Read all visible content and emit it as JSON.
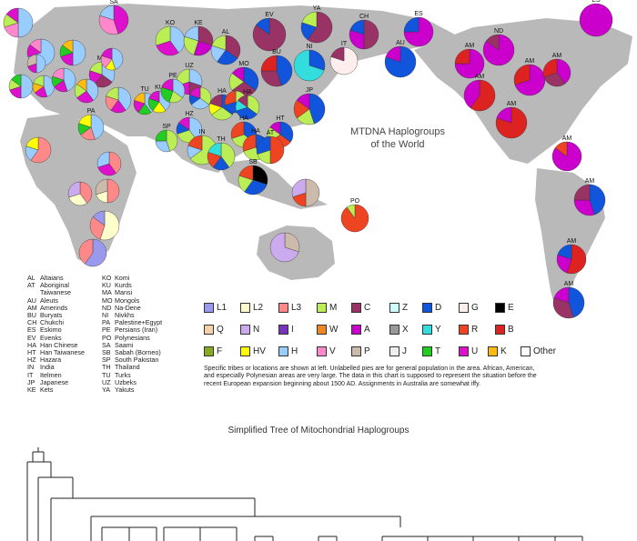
{
  "title": {
    "line1": "MTDNA Haplogroups",
    "line2": "of the World"
  },
  "abbreviations_left": [
    {
      "code": "AL",
      "name": "Altaians"
    },
    {
      "code": "AT",
      "name": "Aboriginal"
    },
    {
      "code": "",
      "name": "Taiwanese"
    },
    {
      "code": "AU",
      "name": "Aleuts"
    },
    {
      "code": "AM",
      "name": "Amerinds"
    },
    {
      "code": "BU",
      "name": "Buryats"
    },
    {
      "code": "CH",
      "name": "Chukchi"
    },
    {
      "code": "ES",
      "name": "Eskimo"
    },
    {
      "code": "EV",
      "name": "Evenks"
    },
    {
      "code": "HA",
      "name": "Han Chinese"
    },
    {
      "code": "HT",
      "name": "Han Taiwanese"
    },
    {
      "code": "HZ",
      "name": "Hazara"
    },
    {
      "code": "IN",
      "name": "India"
    },
    {
      "code": "IT",
      "name": "Itelmen"
    },
    {
      "code": "JP",
      "name": "Japanese"
    },
    {
      "code": "KE",
      "name": "Kets"
    }
  ],
  "abbreviations_right": [
    {
      "code": "KO",
      "name": "Komi"
    },
    {
      "code": "KU",
      "name": "Kurds"
    },
    {
      "code": "MA",
      "name": "Mansi"
    },
    {
      "code": "MO",
      "name": "Mongols"
    },
    {
      "code": "ND",
      "name": "Na-Dene"
    },
    {
      "code": "NI",
      "name": "Nivkhs"
    },
    {
      "code": "PA",
      "name": "Palestine+Egypt"
    },
    {
      "code": "PE",
      "name": "Persians (Iran)"
    },
    {
      "code": "PO",
      "name": "Polynesians"
    },
    {
      "code": "SA",
      "name": "Saami"
    },
    {
      "code": "SB",
      "name": "Sabah (Borneo)"
    },
    {
      "code": "SP",
      "name": "South Pakistan"
    },
    {
      "code": "TH",
      "name": "Thailand"
    },
    {
      "code": "TU",
      "name": "Turks"
    },
    {
      "code": "UZ",
      "name": "Uzbeks"
    },
    {
      "code": "YA",
      "name": "Yakuts"
    }
  ],
  "legend": [
    {
      "label": "L1",
      "color": "#9999ee"
    },
    {
      "label": "L2",
      "color": "#ffffcc"
    },
    {
      "label": "L3",
      "color": "#ff8888"
    },
    {
      "label": "M",
      "color": "#bbee55"
    },
    {
      "label": "C",
      "color": "#993366"
    },
    {
      "label": "Z",
      "color": "#ccffff"
    },
    {
      "label": "D",
      "color": "#1155dd"
    },
    {
      "label": "G",
      "color": "#ffeeee"
    },
    {
      "label": "E",
      "color": "#000000"
    },
    {
      "label": "Q",
      "color": "#f5d0a8"
    },
    {
      "label": "N",
      "color": "#ccaaee"
    },
    {
      "label": "I",
      "color": "#7733bb"
    },
    {
      "label": "W",
      "color": "#ee8822"
    },
    {
      "label": "A",
      "color": "#cc00cc"
    },
    {
      "label": "X",
      "color": "#999999"
    },
    {
      "label": "Y",
      "color": "#33dddd"
    },
    {
      "label": "R",
      "color": "#ee4422"
    },
    {
      "label": "B",
      "color": "#dd2222"
    },
    {
      "label": "F",
      "color": "#88aa22"
    },
    {
      "label": "HV",
      "color": "#ffff00"
    },
    {
      "label": "H",
      "color": "#99ccff"
    },
    {
      "label": "V",
      "color": "#ff88cc"
    },
    {
      "label": "P",
      "color": "#ccbbaa"
    },
    {
      "label": "J",
      "color": "#eeeeee"
    },
    {
      "label": "T",
      "color": "#22cc22"
    },
    {
      "label": "U",
      "color": "#dd11cc"
    },
    {
      "label": "K",
      "color": "#ffbb11"
    },
    {
      "label": "Other",
      "color": "#ffffff"
    }
  ],
  "note": "Specific tribes or locations are shown at left. Unlabelled pies are for general population in the area. African, American, and especially Polynesian areas are very large. The data in this chart is supposed to represent the situation before the recent European expansion beginning about 1500 AD. Assignments in Australia are somewhat iffy.",
  "tree_title": "Simplified Tree of Mitochondrial Haplogroups",
  "pies": [
    {
      "label": "",
      "s": [
        [
          "#99ccff",
          0.5
        ],
        [
          "#ff88cc",
          0.2
        ],
        [
          "#bbee55",
          0.15
        ],
        [
          "#dd11cc",
          0.15
        ]
      ]
    },
    {
      "label": "SA",
      "s": [
        [
          "#dd11cc",
          0.45
        ],
        [
          "#ff88cc",
          0.35
        ],
        [
          "#99ccff",
          0.2
        ]
      ]
    },
    {
      "label": "",
      "s": [
        [
          "#99ccff",
          0.7
        ],
        [
          "#dd11cc",
          0.15
        ],
        [
          "#ff88cc",
          0.15
        ]
      ]
    },
    {
      "label": "",
      "s": [
        [
          "#99ccff",
          0.5
        ],
        [
          "#dd11cc",
          0.2
        ],
        [
          "#22cc22",
          0.15
        ],
        [
          "#ffbb11",
          0.15
        ]
      ]
    },
    {
      "label": "KO",
      "s": [
        [
          "#99ccff",
          0.4
        ],
        [
          "#dd11cc",
          0.3
        ],
        [
          "#bbee55",
          0.3
        ]
      ]
    },
    {
      "label": "KE",
      "s": [
        [
          "#993366",
          0.3
        ],
        [
          "#cc00cc",
          0.25
        ],
        [
          "#bbee55",
          0.25
        ],
        [
          "#99ccff",
          0.2
        ]
      ]
    },
    {
      "label": "AL",
      "s": [
        [
          "#993366",
          0.35
        ],
        [
          "#1155dd",
          0.25
        ],
        [
          "#99ccff",
          0.2
        ],
        [
          "#bbee55",
          0.2
        ]
      ]
    },
    {
      "label": "EV",
      "s": [
        [
          "#993366",
          0.85
        ],
        [
          "#1155dd",
          0.15
        ]
      ]
    },
    {
      "label": "YA",
      "s": [
        [
          "#993366",
          0.6
        ],
        [
          "#1155dd",
          0.2
        ],
        [
          "#bbee55",
          0.2
        ]
      ]
    },
    {
      "label": "CH",
      "s": [
        [
          "#993366",
          0.5
        ],
        [
          "#cc00cc",
          0.3
        ],
        [
          "#1155dd",
          0.2
        ]
      ]
    },
    {
      "label": "ES",
      "s": [
        [
          "#cc00cc",
          0.75
        ],
        [
          "#1155dd",
          0.25
        ]
      ]
    },
    {
      "label": "ES",
      "s": [
        [
          "#cc00cc",
          1.0
        ]
      ]
    },
    {
      "label": "",
      "s": [
        [
          "#99ccff",
          0.5
        ],
        [
          "#dd11cc",
          0.2
        ],
        [
          "#bbee55",
          0.15
        ],
        [
          "#22cc22",
          0.15
        ]
      ]
    },
    {
      "label": "",
      "s": [
        [
          "#99ccff",
          0.45
        ],
        [
          "#dd11cc",
          0.2
        ],
        [
          "#ffbb11",
          0.15
        ],
        [
          "#bbee55",
          0.2
        ]
      ]
    },
    {
      "label": "",
      "s": [
        [
          "#99ccff",
          0.45
        ],
        [
          "#dd11cc",
          0.2
        ],
        [
          "#22cc22",
          0.15
        ],
        [
          "#ff88cc",
          0.2
        ]
      ]
    },
    {
      "label": "MA",
      "s": [
        [
          "#99ccff",
          0.35
        ],
        [
          "#993366",
          0.25
        ],
        [
          "#dd11cc",
          0.2
        ],
        [
          "#bbee55",
          0.2
        ]
      ]
    },
    {
      "label": "",
      "s": [
        [
          "#99ccff",
          0.5
        ],
        [
          "#dd11cc",
          0.2
        ],
        [
          "#ccbbaa",
          0.3
        ]
      ]
    },
    {
      "label": "",
      "s": [
        [
          "#99ccff",
          0.4
        ],
        [
          "#dd11cc",
          0.25
        ],
        [
          "#bbee55",
          0.2
        ],
        [
          "#ffbb11",
          0.15
        ]
      ]
    },
    {
      "label": "UZ",
      "s": [
        [
          "#99ccff",
          0.3
        ],
        [
          "#993366",
          0.2
        ],
        [
          "#dd11cc",
          0.2
        ],
        [
          "#bbee55",
          0.3
        ]
      ]
    },
    {
      "label": "MO",
      "s": [
        [
          "#1155dd",
          0.35
        ],
        [
          "#993366",
          0.3
        ],
        [
          "#bbee55",
          0.2
        ],
        [
          "#cc00cc",
          0.15
        ]
      ]
    },
    {
      "label": "BU",
      "s": [
        [
          "#1155dd",
          0.45
        ],
        [
          "#993366",
          0.3
        ],
        [
          "#dd2222",
          0.25
        ]
      ]
    },
    {
      "label": "NI",
      "s": [
        [
          "#1155dd",
          0.3
        ],
        [
          "#33dddd",
          0.7
        ]
      ]
    },
    {
      "label": "IT",
      "s": [
        [
          "#ffeeee",
          0.8
        ],
        [
          "#993366",
          0.2
        ]
      ]
    },
    {
      "label": "AU",
      "s": [
        [
          "#1155dd",
          0.8
        ],
        [
          "#cc00cc",
          0.2
        ]
      ]
    },
    {
      "label": "AM",
      "s": [
        [
          "#cc00cc",
          0.75
        ],
        [
          "#dd2222",
          0.25
        ]
      ]
    },
    {
      "label": "ND",
      "s": [
        [
          "#cc00cc",
          0.85
        ],
        [
          "#993366",
          0.15
        ]
      ]
    },
    {
      "label": "AM",
      "s": [
        [
          "#cc00cc",
          0.7
        ],
        [
          "#dd2222",
          0.3
        ]
      ]
    },
    {
      "label": "AM",
      "s": [
        [
          "#dd2222",
          0.6
        ],
        [
          "#cc00cc",
          0.4
        ]
      ]
    },
    {
      "label": "AM",
      "s": [
        [
          "#cc00cc",
          0.4
        ],
        [
          "#993366",
          0.3
        ],
        [
          "#dd2222",
          0.3
        ]
      ]
    },
    {
      "label": "AM",
      "s": [
        [
          "#dd2222",
          0.8
        ],
        [
          "#cc00cc",
          0.2
        ]
      ]
    },
    {
      "label": "",
      "s": [
        [
          "#99ccff",
          0.45
        ],
        [
          "#ffff00",
          0.15
        ],
        [
          "#ff88cc",
          0.2
        ],
        [
          "#dd11cc",
          0.2
        ]
      ]
    },
    {
      "label": "",
      "s": [
        [
          "#99ccff",
          0.4
        ],
        [
          "#dd11cc",
          0.2
        ],
        [
          "#ff8888",
          0.2
        ],
        [
          "#bbee55",
          0.2
        ]
      ]
    },
    {
      "label": "TU",
      "s": [
        [
          "#99ccff",
          0.4
        ],
        [
          "#22cc22",
          0.2
        ],
        [
          "#dd11cc",
          0.2
        ],
        [
          "#ffbb11",
          0.2
        ]
      ]
    },
    {
      "label": "KU",
      "s": [
        [
          "#99ccff",
          0.4
        ],
        [
          "#ffff00",
          0.2
        ],
        [
          "#22cc22",
          0.2
        ],
        [
          "#dd11cc",
          0.2
        ]
      ]
    },
    {
      "label": "PE",
      "s": [
        [
          "#99ccff",
          0.35
        ],
        [
          "#bbee55",
          0.2
        ],
        [
          "#22cc22",
          0.25
        ],
        [
          "#dd11cc",
          0.2
        ]
      ]
    },
    {
      "label": "",
      "s": [
        [
          "#bbee55",
          0.35
        ],
        [
          "#99ccff",
          0.3
        ],
        [
          "#1155dd",
          0.15
        ],
        [
          "#dd11cc",
          0.2
        ]
      ]
    },
    {
      "label": "HA",
      "s": [
        [
          "#1155dd",
          0.35
        ],
        [
          "#bbee55",
          0.3
        ],
        [
          "#ffff00",
          0.15
        ],
        [
          "#993366",
          0.2
        ]
      ]
    },
    {
      "label": "",
      "s": [
        [
          "#bbee55",
          0.4
        ],
        [
          "#1155dd",
          0.3
        ],
        [
          "#ee4422",
          0.3
        ]
      ]
    },
    {
      "label": "HA",
      "s": [
        [
          "#bbee55",
          0.35
        ],
        [
          "#1155dd",
          0.35
        ],
        [
          "#33dddd",
          0.15
        ],
        [
          "#993366",
          0.15
        ]
      ]
    },
    {
      "label": "JP",
      "s": [
        [
          "#1155dd",
          0.45
        ],
        [
          "#bbee55",
          0.2
        ],
        [
          "#ee4422",
          0.2
        ],
        [
          "#cc00cc",
          0.15
        ]
      ]
    },
    {
      "label": "PA",
      "s": [
        [
          "#99ccff",
          0.45
        ],
        [
          "#ff8888",
          0.2
        ],
        [
          "#22cc22",
          0.15
        ],
        [
          "#ffff00",
          0.2
        ]
      ]
    },
    {
      "label": "SP",
      "s": [
        [
          "#bbee55",
          0.45
        ],
        [
          "#99ccff",
          0.3
        ],
        [
          "#22cc22",
          0.25
        ]
      ]
    },
    {
      "label": "HZ",
      "s": [
        [
          "#99ccff",
          0.4
        ],
        [
          "#bbee55",
          0.3
        ],
        [
          "#1155dd",
          0.15
        ],
        [
          "#dd11cc",
          0.15
        ]
      ]
    },
    {
      "label": "IN",
      "s": [
        [
          "#bbee55",
          0.65
        ],
        [
          "#99ccff",
          0.15
        ],
        [
          "#ee4422",
          0.2
        ]
      ]
    },
    {
      "label": "HA",
      "s": [
        [
          "#1155dd",
          0.35
        ],
        [
          "#bbee55",
          0.35
        ],
        [
          "#ee4422",
          0.3
        ]
      ]
    },
    {
      "label": "HT",
      "s": [
        [
          "#1155dd",
          0.35
        ],
        [
          "#ee4422",
          0.3
        ],
        [
          "#bbee55",
          0.2
        ],
        [
          "#cc00cc",
          0.15
        ]
      ]
    },
    {
      "label": "TH",
      "s": [
        [
          "#bbee55",
          0.4
        ],
        [
          "#1155dd",
          0.2
        ],
        [
          "#ee4422",
          0.2
        ],
        [
          "#33dddd",
          0.2
        ]
      ]
    },
    {
      "label": "HA",
      "s": [
        [
          "#1155dd",
          0.4
        ],
        [
          "#bbee55",
          0.3
        ],
        [
          "#ee4422",
          0.3
        ]
      ]
    },
    {
      "label": "AT",
      "s": [
        [
          "#ee4422",
          0.5
        ],
        [
          "#bbee55",
          0.2
        ],
        [
          "#1155dd",
          0.3
        ]
      ]
    },
    {
      "label": "SB",
      "s": [
        [
          "#000000",
          0.3
        ],
        [
          "#1155dd",
          0.3
        ],
        [
          "#bbee55",
          0.2
        ],
        [
          "#ee4422",
          0.2
        ]
      ]
    },
    {
      "label": "",
      "s": [
        [
          "#ff8888",
          0.6
        ],
        [
          "#99ccff",
          0.2
        ],
        [
          "#ffff00",
          0.2
        ]
      ]
    },
    {
      "label": "",
      "s": [
        [
          "#ff8888",
          0.4
        ],
        [
          "#dd11cc",
          0.3
        ],
        [
          "#99ccff",
          0.3
        ]
      ]
    },
    {
      "label": "",
      "s": [
        [
          "#ff8888",
          0.4
        ],
        [
          "#ffffcc",
          0.3
        ],
        [
          "#ccaaee",
          0.3
        ]
      ]
    },
    {
      "label": "",
      "s": [
        [
          "#ff8888",
          0.5
        ],
        [
          "#ffffcc",
          0.2
        ],
        [
          "#ccbbaa",
          0.3
        ]
      ]
    },
    {
      "label": "",
      "s": [
        [
          "#ffffcc",
          0.55
        ],
        [
          "#ff8888",
          0.3
        ],
        [
          "#9999ee",
          0.15
        ]
      ]
    },
    {
      "label": "",
      "s": [
        [
          "#9999ee",
          0.6
        ],
        [
          "#ff8888",
          0.4
        ]
      ]
    },
    {
      "label": "",
      "s": [
        [
          "#ccbbaa",
          0.5
        ],
        [
          "#ee4422",
          0.2
        ],
        [
          "#ccaaee",
          0.3
        ]
      ]
    },
    {
      "label": "PO",
      "s": [
        [
          "#ee4422",
          0.9
        ],
        [
          "#bbee55",
          0.1
        ]
      ]
    },
    {
      "label": "",
      "s": [
        [
          "#ccbbaa",
          0.3
        ],
        [
          "#ccaaee",
          0.7
        ]
      ]
    },
    {
      "label": "AM",
      "s": [
        [
          "#cc00cc",
          0.85
        ],
        [
          "#ee4422",
          0.15
        ]
      ]
    },
    {
      "label": "AM",
      "s": [
        [
          "#1155dd",
          0.45
        ],
        [
          "#cc00cc",
          0.3
        ],
        [
          "#993366",
          0.25
        ]
      ]
    },
    {
      "label": "AM",
      "s": [
        [
          "#dd2222",
          0.55
        ],
        [
          "#cc00cc",
          0.25
        ],
        [
          "#1155dd",
          0.2
        ]
      ]
    },
    {
      "label": "AM",
      "s": [
        [
          "#1155dd",
          0.45
        ],
        [
          "#993366",
          0.35
        ],
        [
          "#cc00cc",
          0.2
        ]
      ]
    }
  ]
}
